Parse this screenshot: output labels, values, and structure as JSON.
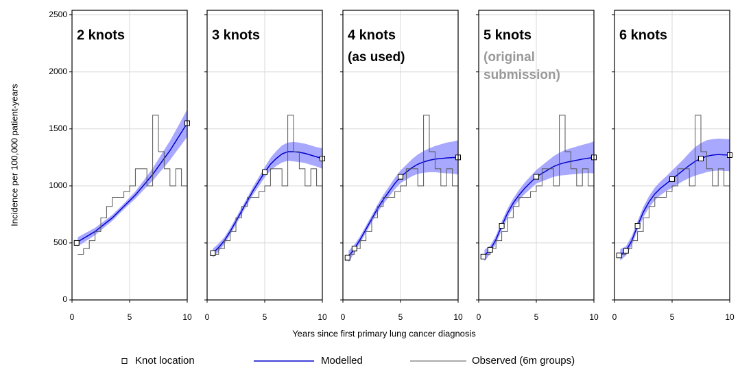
{
  "x_label": "Years since first primary lung cancer diagnosis",
  "y_label": "Incidence per 100,000 patient-years",
  "chart_data": [
    {
      "type": "line",
      "title": "2 knots",
      "subtitle": [],
      "subtitle_color": "#000000",
      "ytick_labels": true,
      "xlim": [
        0,
        10
      ],
      "ylim": [
        0,
        2540
      ],
      "xticks": [
        0,
        5,
        10
      ],
      "yticks": [
        0,
        500,
        1000,
        1500,
        2000,
        2500
      ],
      "grid": true,
      "x": [
        0.5,
        1,
        1.5,
        2,
        2.5,
        3,
        3.5,
        4,
        4.5,
        5,
        5.5,
        6,
        6.5,
        7,
        7.5,
        8,
        8.5,
        9,
        9.5,
        10
      ],
      "series": [
        {
          "name": "Modelled",
          "color": "#0000cc",
          "band_color": "#9999ff",
          "values": [
            510,
            540,
            570,
            600,
            640,
            680,
            720,
            770,
            820,
            870,
            920,
            980,
            1040,
            1100,
            1170,
            1240,
            1310,
            1390,
            1470,
            1550
          ],
          "lower": [
            470,
            502,
            535,
            568,
            610,
            652,
            694,
            745,
            795,
            842,
            888,
            942,
            995,
            1045,
            1105,
            1165,
            1225,
            1295,
            1362,
            1430
          ],
          "upper": [
            550,
            578,
            605,
            632,
            670,
            708,
            746,
            795,
            845,
            898,
            952,
            1018,
            1085,
            1155,
            1235,
            1315,
            1395,
            1485,
            1578,
            1670
          ]
        },
        {
          "name": "Observed (6m groups)",
          "color": "#555555",
          "step": "post",
          "values": [
            400,
            450,
            520,
            600,
            720,
            820,
            900,
            900,
            950,
            1000,
            1150,
            1150,
            1000,
            1620,
            1300,
            1150,
            1000,
            1150,
            1000,
            1250
          ]
        }
      ],
      "knots": {
        "name": "Knot location",
        "x": [
          0.4,
          10
        ],
        "values": [
          500,
          1550
        ]
      }
    },
    {
      "type": "line",
      "title": "3 knots",
      "subtitle": [],
      "subtitle_color": "#000000",
      "ytick_labels": false,
      "xlim": [
        0,
        10
      ],
      "ylim": [
        0,
        2540
      ],
      "xticks": [
        0,
        5,
        10
      ],
      "yticks": [
        0,
        500,
        1000,
        1500,
        2000,
        2500
      ],
      "grid": true,
      "x": [
        0.5,
        1,
        1.5,
        2,
        2.5,
        3,
        3.5,
        4,
        4.5,
        5,
        5.5,
        6,
        6.5,
        7,
        7.5,
        8,
        8.5,
        9,
        9.5,
        10
      ],
      "series": [
        {
          "name": "Modelled",
          "color": "#0000cc",
          "band_color": "#9999ff",
          "values": [
            410,
            460,
            520,
            600,
            690,
            780,
            870,
            960,
            1040,
            1120,
            1190,
            1240,
            1280,
            1300,
            1300,
            1295,
            1285,
            1270,
            1255,
            1240
          ],
          "lower": [
            370,
            425,
            490,
            570,
            660,
            750,
            840,
            925,
            1000,
            1075,
            1135,
            1175,
            1205,
            1220,
            1215,
            1210,
            1200,
            1185,
            1170,
            1150
          ],
          "upper": [
            450,
            495,
            550,
            630,
            720,
            810,
            900,
            995,
            1080,
            1165,
            1245,
            1305,
            1355,
            1380,
            1385,
            1380,
            1370,
            1355,
            1340,
            1330
          ]
        },
        {
          "name": "Observed (6m groups)",
          "color": "#555555",
          "step": "post",
          "values": [
            400,
            450,
            520,
            600,
            720,
            820,
            900,
            900,
            950,
            1000,
            1150,
            1150,
            1000,
            1620,
            1300,
            1150,
            1000,
            1150,
            1000,
            1250
          ]
        }
      ],
      "knots": {
        "name": "Knot location",
        "x": [
          0.5,
          5,
          10
        ],
        "values": [
          410,
          1120,
          1240
        ]
      }
    },
    {
      "type": "line",
      "title": "4 knots",
      "subtitle": [
        "(as used)"
      ],
      "subtitle_color": "#000000",
      "ytick_labels": false,
      "xlim": [
        0,
        10
      ],
      "ylim": [
        0,
        2540
      ],
      "xticks": [
        0,
        5,
        10
      ],
      "yticks": [
        0,
        500,
        1000,
        1500,
        2000,
        2500
      ],
      "grid": true,
      "x": [
        0.5,
        1,
        1.5,
        2,
        2.5,
        3,
        3.5,
        4,
        4.5,
        5,
        5.5,
        6,
        6.5,
        7,
        7.5,
        8,
        8.5,
        9,
        9.5,
        10
      ],
      "series": [
        {
          "name": "Modelled",
          "color": "#0000cc",
          "band_color": "#9999ff",
          "values": [
            380,
            450,
            530,
            620,
            710,
            800,
            880,
            950,
            1020,
            1080,
            1120,
            1160,
            1190,
            1210,
            1225,
            1235,
            1240,
            1245,
            1248,
            1250
          ],
          "lower": [
            330,
            415,
            500,
            590,
            680,
            765,
            840,
            905,
            970,
            1025,
            1055,
            1085,
            1105,
            1115,
            1120,
            1120,
            1115,
            1110,
            1108,
            1100
          ],
          "upper": [
            430,
            485,
            560,
            650,
            740,
            835,
            920,
            995,
            1070,
            1135,
            1185,
            1235,
            1275,
            1305,
            1330,
            1350,
            1365,
            1380,
            1388,
            1400
          ]
        },
        {
          "name": "Observed (6m groups)",
          "color": "#555555",
          "step": "post",
          "values": [
            400,
            450,
            520,
            600,
            720,
            820,
            900,
            900,
            950,
            1000,
            1150,
            1150,
            1000,
            1620,
            1300,
            1150,
            1000,
            1150,
            1000,
            1250
          ]
        }
      ],
      "knots": {
        "name": "Knot location",
        "x": [
          0.4,
          1,
          5,
          10
        ],
        "values": [
          370,
          450,
          1080,
          1250
        ]
      }
    },
    {
      "type": "line",
      "title": "5 knots",
      "subtitle": [
        "(original",
        "submission)"
      ],
      "subtitle_color": "#999999",
      "ytick_labels": false,
      "xlim": [
        0,
        10
      ],
      "ylim": [
        0,
        2540
      ],
      "xticks": [
        0,
        5,
        10
      ],
      "yticks": [
        0,
        500,
        1000,
        1500,
        2000,
        2500
      ],
      "grid": true,
      "x": [
        0.5,
        1,
        1.5,
        2,
        2.5,
        3,
        3.5,
        4,
        4.5,
        5,
        5.5,
        6,
        6.5,
        7,
        7.5,
        8,
        8.5,
        9,
        9.5,
        10
      ],
      "series": [
        {
          "name": "Modelled",
          "color": "#0000cc",
          "band_color": "#9999ff",
          "values": [
            390,
            440,
            530,
            650,
            760,
            850,
            920,
            980,
            1030,
            1080,
            1110,
            1140,
            1170,
            1190,
            1205,
            1215,
            1225,
            1235,
            1243,
            1250
          ],
          "lower": [
            340,
            405,
            495,
            610,
            720,
            810,
            875,
            930,
            975,
            1020,
            1040,
            1060,
            1080,
            1090,
            1095,
            1100,
            1105,
            1110,
            1113,
            1110
          ],
          "upper": [
            440,
            475,
            565,
            690,
            800,
            890,
            965,
            1030,
            1085,
            1140,
            1180,
            1220,
            1260,
            1290,
            1315,
            1330,
            1345,
            1360,
            1373,
            1390
          ]
        },
        {
          "name": "Observed (6m groups)",
          "color": "#555555",
          "step": "post",
          "values": [
            400,
            450,
            520,
            600,
            720,
            820,
            900,
            900,
            950,
            1000,
            1150,
            1150,
            1000,
            1620,
            1300,
            1150,
            1000,
            1150,
            1000,
            1250
          ]
        }
      ],
      "knots": {
        "name": "Knot location",
        "x": [
          0.4,
          1,
          2,
          5,
          10
        ],
        "values": [
          380,
          440,
          650,
          1080,
          1250
        ]
      }
    },
    {
      "type": "line",
      "title": "6 knots",
      "subtitle": [],
      "subtitle_color": "#000000",
      "ytick_labels": false,
      "xlim": [
        0,
        10
      ],
      "ylim": [
        0,
        2540
      ],
      "xticks": [
        0,
        5,
        10
      ],
      "yticks": [
        0,
        500,
        1000,
        1500,
        2000,
        2500
      ],
      "grid": true,
      "x": [
        0.5,
        1,
        1.5,
        2,
        2.5,
        3,
        3.5,
        4,
        4.5,
        5,
        5.5,
        6,
        6.5,
        7,
        7.5,
        8,
        8.5,
        9,
        9.5,
        10
      ],
      "series": [
        {
          "name": "Modelled",
          "color": "#0000cc",
          "band_color": "#9999ff",
          "values": [
            395,
            430,
            520,
            650,
            770,
            860,
            930,
            980,
            1020,
            1060,
            1100,
            1140,
            1180,
            1215,
            1240,
            1260,
            1270,
            1275,
            1272,
            1270
          ],
          "lower": [
            345,
            390,
            480,
            610,
            725,
            810,
            875,
            920,
            955,
            985,
            1015,
            1045,
            1070,
            1090,
            1105,
            1120,
            1130,
            1135,
            1132,
            1130
          ],
          "upper": [
            445,
            470,
            560,
            690,
            815,
            910,
            985,
            1040,
            1085,
            1135,
            1185,
            1235,
            1290,
            1340,
            1375,
            1400,
            1410,
            1415,
            1412,
            1410
          ]
        },
        {
          "name": "Observed (6m groups)",
          "color": "#555555",
          "step": "post",
          "values": [
            400,
            450,
            520,
            600,
            720,
            820,
            900,
            900,
            950,
            1000,
            1150,
            1150,
            1000,
            1620,
            1300,
            1150,
            1000,
            1150,
            1000,
            1250
          ]
        }
      ],
      "knots": {
        "name": "Knot location",
        "x": [
          0.4,
          1,
          2,
          5,
          7.5,
          10
        ],
        "values": [
          390,
          430,
          650,
          1060,
          1240,
          1270
        ]
      }
    }
  ]
}
